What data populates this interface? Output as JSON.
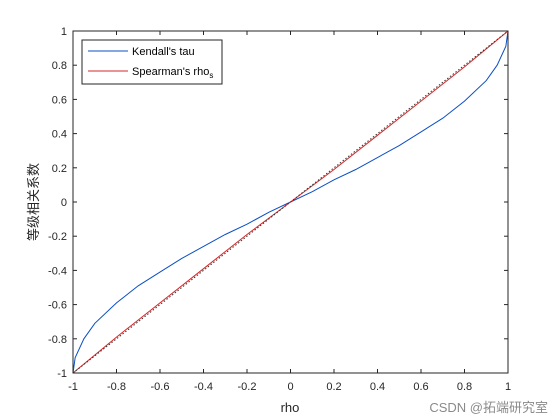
{
  "chart_data": {
    "type": "line",
    "xlabel": "rho",
    "ylabel": "等级相关系数",
    "xlim": [
      -1,
      1
    ],
    "ylim": [
      -1,
      1
    ],
    "xticks": [
      "-1",
      "-0.8",
      "-0.6",
      "-0.4",
      "-0.2",
      "0",
      "0.2",
      "0.4",
      "0.6",
      "0.8",
      "1"
    ],
    "yticks": [
      "-1",
      "-0.8",
      "-0.6",
      "-0.4",
      "-0.2",
      "0",
      "0.2",
      "0.4",
      "0.6",
      "0.8",
      "1"
    ],
    "grid": false,
    "legend_position": "top-left",
    "series": [
      {
        "name": "Kendall's tau",
        "color": "#0b4fc4",
        "style": "solid",
        "x": [
          -1,
          -0.99,
          -0.95,
          -0.9,
          -0.8,
          -0.7,
          -0.6,
          -0.5,
          -0.4,
          -0.3,
          -0.2,
          -0.1,
          0,
          0.1,
          0.2,
          0.3,
          0.4,
          0.5,
          0.6,
          0.7,
          0.8,
          0.9,
          0.95,
          0.99,
          1
        ],
        "values": [
          -1,
          -0.91,
          -0.8,
          -0.71,
          -0.59,
          -0.49,
          -0.41,
          -0.33,
          -0.26,
          -0.19,
          -0.13,
          -0.06,
          0,
          0.06,
          0.13,
          0.19,
          0.26,
          0.33,
          0.41,
          0.49,
          0.59,
          0.71,
          0.8,
          0.91,
          1
        ]
      },
      {
        "name": "Spearman's rho",
        "subscript": "s",
        "color": "#d62728",
        "style": "solid",
        "x": [
          -1,
          -0.8,
          -0.6,
          -0.4,
          -0.2,
          0,
          0.2,
          0.4,
          0.6,
          0.8,
          1
        ],
        "values": [
          -1,
          -0.79,
          -0.59,
          -0.39,
          -0.19,
          0,
          0.19,
          0.39,
          0.59,
          0.79,
          1
        ]
      },
      {
        "color": "#333333",
        "style": "dotted",
        "x": [
          -1,
          1
        ],
        "values": [
          -1,
          1
        ]
      }
    ]
  },
  "watermark": "CSDN @拓端研究室"
}
